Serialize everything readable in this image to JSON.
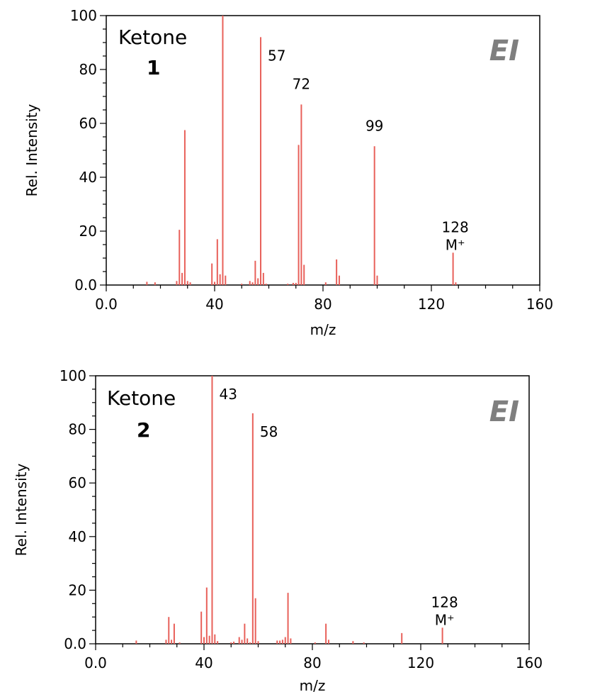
{
  "chart_data": [
    {
      "type": "bar",
      "compound_name": "Ketone",
      "compound_number": "1",
      "method": "EI",
      "xlabel": "m/z",
      "ylabel": "Rel. Intensity",
      "xlim": [
        0,
        160
      ],
      "ylim": [
        0,
        100
      ],
      "x_tick_labels": [
        "0.0",
        "40",
        "80",
        "120",
        "160"
      ],
      "y_tick_labels": [
        "0.0",
        "20",
        "40",
        "60",
        "80",
        "100"
      ],
      "bar_color": "#e8605a",
      "peaks": [
        {
          "mz": 15,
          "intensity": 1.2
        },
        {
          "mz": 18,
          "intensity": 1
        },
        {
          "mz": 26,
          "intensity": 1.5
        },
        {
          "mz": 27,
          "intensity": 20.5
        },
        {
          "mz": 28,
          "intensity": 4.5
        },
        {
          "mz": 29,
          "intensity": 57.5
        },
        {
          "mz": 30,
          "intensity": 1.5
        },
        {
          "mz": 31,
          "intensity": 1
        },
        {
          "mz": 39,
          "intensity": 8
        },
        {
          "mz": 40,
          "intensity": 1.2
        },
        {
          "mz": 41,
          "intensity": 17
        },
        {
          "mz": 42,
          "intensity": 4
        },
        {
          "mz": 43,
          "intensity": 100
        },
        {
          "mz": 44,
          "intensity": 3.5
        },
        {
          "mz": 50,
          "intensity": 0.5
        },
        {
          "mz": 53,
          "intensity": 1.5
        },
        {
          "mz": 54,
          "intensity": 1
        },
        {
          "mz": 55,
          "intensity": 9
        },
        {
          "mz": 56,
          "intensity": 2.5
        },
        {
          "mz": 57,
          "intensity": 92
        },
        {
          "mz": 58,
          "intensity": 4.5
        },
        {
          "mz": 59,
          "intensity": 0.5
        },
        {
          "mz": 67,
          "intensity": 0.5
        },
        {
          "mz": 69,
          "intensity": 0.8
        },
        {
          "mz": 70,
          "intensity": 0.8
        },
        {
          "mz": 71,
          "intensity": 52
        },
        {
          "mz": 72,
          "intensity": 67
        },
        {
          "mz": 73,
          "intensity": 7.5
        },
        {
          "mz": 81,
          "intensity": 1
        },
        {
          "mz": 85,
          "intensity": 9.5
        },
        {
          "mz": 86,
          "intensity": 3.5
        },
        {
          "mz": 99,
          "intensity": 51.5
        },
        {
          "mz": 100,
          "intensity": 3.5
        },
        {
          "mz": 128,
          "intensity": 12
        },
        {
          "mz": 129,
          "intensity": 1
        }
      ],
      "annotations": [
        {
          "mz": 57,
          "lines": [
            "57"
          ]
        },
        {
          "mz": 72,
          "lines": [
            "72"
          ]
        },
        {
          "mz": 99,
          "lines": [
            "99"
          ]
        },
        {
          "mz": 128,
          "lines": [
            "128",
            "M⁺"
          ]
        }
      ]
    },
    {
      "type": "bar",
      "compound_name": "Ketone",
      "compound_number": "2",
      "method": "EI",
      "xlabel": "m/z",
      "ylabel": "Rel. Intensity",
      "xlim": [
        0,
        160
      ],
      "ylim": [
        0,
        100
      ],
      "x_tick_labels": [
        "0.0",
        "40",
        "80",
        "120",
        "160"
      ],
      "y_tick_labels": [
        "0.0",
        "20",
        "40",
        "60",
        "80",
        "100"
      ],
      "bar_color": "#e8605a",
      "peaks": [
        {
          "mz": 15,
          "intensity": 1.2
        },
        {
          "mz": 26,
          "intensity": 1.5
        },
        {
          "mz": 27,
          "intensity": 10
        },
        {
          "mz": 28,
          "intensity": 1.5
        },
        {
          "mz": 29,
          "intensity": 7.5
        },
        {
          "mz": 31,
          "intensity": 0.5
        },
        {
          "mz": 39,
          "intensity": 12
        },
        {
          "mz": 40,
          "intensity": 2.5
        },
        {
          "mz": 41,
          "intensity": 21
        },
        {
          "mz": 42,
          "intensity": 3
        },
        {
          "mz": 43,
          "intensity": 100
        },
        {
          "mz": 44,
          "intensity": 3.5
        },
        {
          "mz": 45,
          "intensity": 1
        },
        {
          "mz": 50,
          "intensity": 0.5
        },
        {
          "mz": 51,
          "intensity": 0.8
        },
        {
          "mz": 53,
          "intensity": 2.5
        },
        {
          "mz": 54,
          "intensity": 1.5
        },
        {
          "mz": 55,
          "intensity": 7.5
        },
        {
          "mz": 56,
          "intensity": 2
        },
        {
          "mz": 57,
          "intensity": 0.5
        },
        {
          "mz": 58,
          "intensity": 86
        },
        {
          "mz": 59,
          "intensity": 17
        },
        {
          "mz": 60,
          "intensity": 1
        },
        {
          "mz": 67,
          "intensity": 1.2
        },
        {
          "mz": 68,
          "intensity": 1.2
        },
        {
          "mz": 69,
          "intensity": 1.5
        },
        {
          "mz": 70,
          "intensity": 2.5
        },
        {
          "mz": 71,
          "intensity": 19
        },
        {
          "mz": 72,
          "intensity": 2
        },
        {
          "mz": 81,
          "intensity": 0.5
        },
        {
          "mz": 85,
          "intensity": 7.5
        },
        {
          "mz": 86,
          "intensity": 1.5
        },
        {
          "mz": 95,
          "intensity": 1
        },
        {
          "mz": 99,
          "intensity": 0.5
        },
        {
          "mz": 113,
          "intensity": 4
        },
        {
          "mz": 128,
          "intensity": 6
        }
      ],
      "annotations": [
        {
          "mz": 43,
          "lines": [
            "43"
          ]
        },
        {
          "mz": 58,
          "lines": [
            "58"
          ]
        },
        {
          "mz": 128,
          "lines": [
            "128",
            "M⁺"
          ]
        }
      ]
    }
  ]
}
